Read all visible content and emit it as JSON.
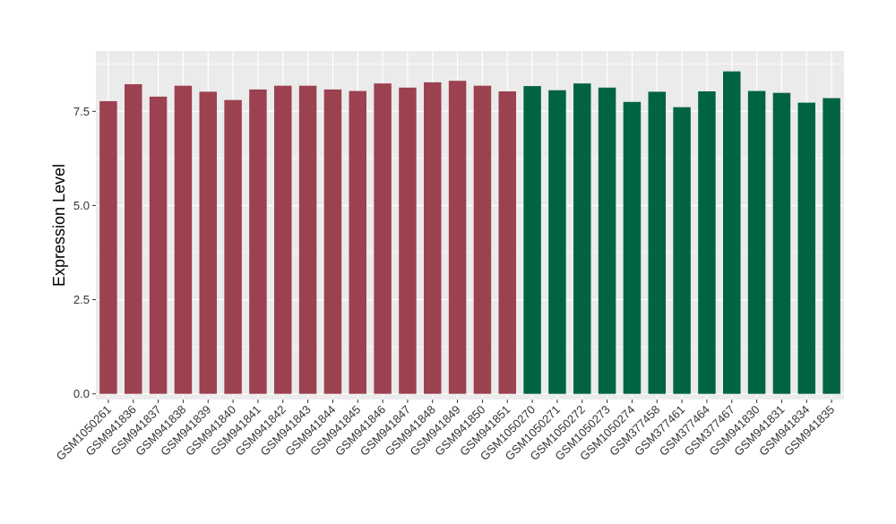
{
  "chart_data": {
    "type": "bar",
    "title": "",
    "xlabel": "",
    "ylabel": "Expression Level",
    "ylim": [
      -0.15,
      9.1
    ],
    "yticks": [
      0.0,
      2.5,
      5.0,
      7.5
    ],
    "ytick_labels": [
      "0.0",
      "2.5",
      "5.0",
      "7.5"
    ],
    "grid": true,
    "legend": "none",
    "panel_background": "#ebebeb",
    "grid_color": "#ffffff",
    "categories": [
      "GSM1050261",
      "GSM941836",
      "GSM941837",
      "GSM941838",
      "GSM941839",
      "GSM941840",
      "GSM941841",
      "GSM941842",
      "GSM941843",
      "GSM941844",
      "GSM941845",
      "GSM941846",
      "GSM941847",
      "GSM941848",
      "GSM941849",
      "GSM941850",
      "GSM941851",
      "GSM1050270",
      "GSM1050271",
      "GSM1050272",
      "GSM1050273",
      "GSM1050274",
      "GSM377458",
      "GSM377461",
      "GSM377464",
      "GSM377467",
      "GSM941830",
      "GSM941831",
      "GSM941834",
      "GSM941835"
    ],
    "values": [
      7.77,
      8.22,
      7.89,
      8.18,
      8.02,
      7.8,
      8.08,
      8.18,
      8.18,
      8.08,
      8.04,
      8.24,
      8.13,
      8.27,
      8.31,
      8.18,
      8.03,
      8.17,
      8.06,
      8.24,
      8.13,
      7.75,
      8.02,
      7.61,
      8.03,
      8.56,
      8.04,
      7.99,
      7.73,
      7.85
    ],
    "groups": [
      "a",
      "a",
      "a",
      "a",
      "a",
      "a",
      "a",
      "a",
      "a",
      "a",
      "a",
      "a",
      "a",
      "a",
      "a",
      "a",
      "a",
      "b",
      "b",
      "b",
      "b",
      "b",
      "b",
      "b",
      "b",
      "b",
      "b",
      "b",
      "b",
      "b"
    ],
    "group_colors": {
      "a": "#9b4150",
      "b": "#006442"
    }
  }
}
